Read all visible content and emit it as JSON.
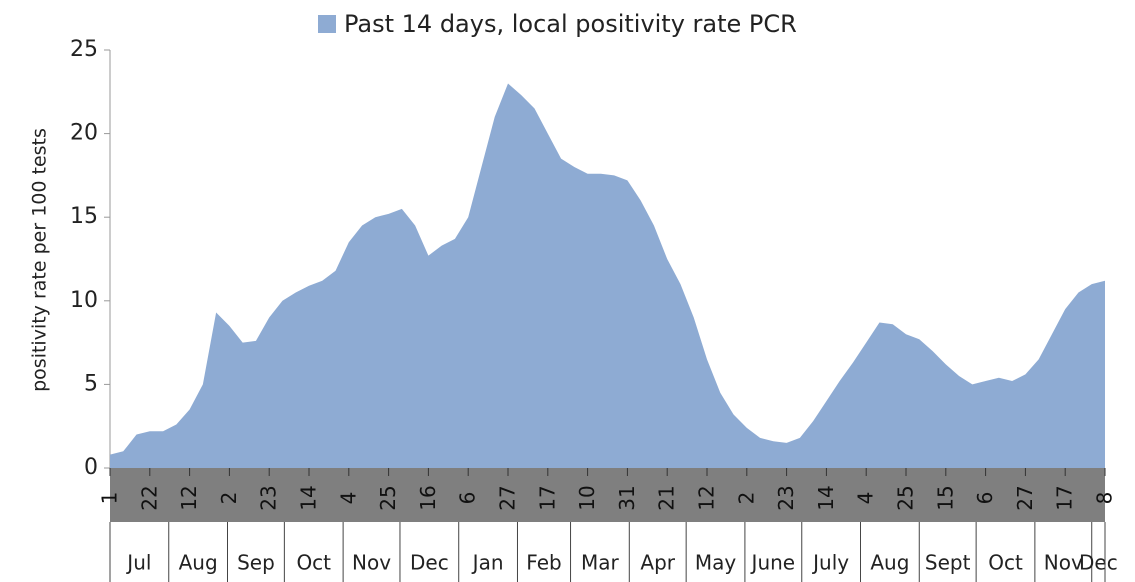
{
  "chart_data": {
    "type": "area",
    "legend_label": "Past 14 days, local positivity rate PCR",
    "y_label": "positivity rate per 100 tests",
    "color": "#8eabd3",
    "series": [
      {
        "name": "Past 14 days, local positivity rate PCR",
        "color": "#8eabd3",
        "x": [
          0,
          7,
          14,
          21,
          28,
          35,
          42,
          49,
          56,
          63,
          70,
          77,
          84,
          91,
          98,
          105,
          112,
          119,
          126,
          133,
          140,
          147,
          154,
          161,
          168,
          175,
          182,
          189,
          196,
          203,
          210,
          217,
          224,
          231,
          238,
          245,
          252,
          259,
          266,
          273,
          280,
          287,
          294,
          301,
          308,
          315,
          322,
          329,
          336,
          343,
          350,
          357,
          364,
          371,
          378,
          385,
          392,
          399,
          406,
          413,
          420,
          427,
          434,
          441,
          448,
          455,
          462,
          469,
          476,
          483,
          490,
          497,
          504,
          511,
          518,
          525
        ],
        "values": [
          0.8,
          1.0,
          2.0,
          2.2,
          2.2,
          2.6,
          3.5,
          5,
          9.3,
          8.5,
          7.5,
          7.6,
          9,
          10,
          10.5,
          10.9,
          11.2,
          11.8,
          13.5,
          14.5,
          15,
          15.2,
          15.5,
          14.5,
          12.7,
          13.3,
          13.7,
          15,
          18,
          21,
          23,
          22.3,
          21.5,
          20,
          18.5,
          18,
          17.6,
          17.6,
          17.5,
          17.2,
          16,
          14.5,
          12.5,
          11,
          9,
          6.5,
          4.5,
          3.2,
          2.4,
          1.8,
          1.6,
          1.5,
          1.8,
          2.8,
          4,
          5.2,
          6.3,
          7.5,
          8.7,
          8.6,
          8,
          7.7,
          7,
          6.2,
          5.5,
          5,
          5.2,
          5.4,
          5.2,
          5.6,
          6.5,
          8,
          9.5,
          10.5,
          11,
          11.2
        ]
      }
    ],
    "xlim": [
      0,
      525
    ],
    "xticks": [
      {
        "value": 0,
        "label": "1"
      },
      {
        "value": 21,
        "label": "22"
      },
      {
        "value": 42,
        "label": "12"
      },
      {
        "value": 63,
        "label": "2"
      },
      {
        "value": 84,
        "label": "23"
      },
      {
        "value": 105,
        "label": "14"
      },
      {
        "value": 126,
        "label": "4"
      },
      {
        "value": 147,
        "label": "25"
      },
      {
        "value": 168,
        "label": "16"
      },
      {
        "value": 189,
        "label": "6"
      },
      {
        "value": 210,
        "label": "27"
      },
      {
        "value": 231,
        "label": "17"
      },
      {
        "value": 252,
        "label": "10"
      },
      {
        "value": 273,
        "label": "31"
      },
      {
        "value": 294,
        "label": "21"
      },
      {
        "value": 315,
        "label": "12"
      },
      {
        "value": 336,
        "label": "2"
      },
      {
        "value": 357,
        "label": "23"
      },
      {
        "value": 378,
        "label": "14"
      },
      {
        "value": 399,
        "label": "4"
      },
      {
        "value": 420,
        "label": "25"
      },
      {
        "value": 441,
        "label": "15"
      },
      {
        "value": 462,
        "label": "6"
      },
      {
        "value": 483,
        "label": "27"
      },
      {
        "value": 504,
        "label": "17"
      },
      {
        "value": 525,
        "label": "8"
      }
    ],
    "months": [
      {
        "label": "Jul",
        "start": 0
      },
      {
        "label": "Aug",
        "start": 31
      },
      {
        "label": "Sep",
        "start": 62
      },
      {
        "label": "Oct",
        "start": 92
      },
      {
        "label": "Nov",
        "start": 123
      },
      {
        "label": "Dec",
        "start": 153
      },
      {
        "label": "Jan",
        "start": 184
      },
      {
        "label": "Feb",
        "start": 215
      },
      {
        "label": "Mar",
        "start": 243
      },
      {
        "label": "Apr",
        "start": 274
      },
      {
        "label": "May",
        "start": 304
      },
      {
        "label": "June",
        "start": 335
      },
      {
        "label": "July",
        "start": 365
      },
      {
        "label": "Aug",
        "start": 396
      },
      {
        "label": "Sept",
        "start": 427
      },
      {
        "label": "Oct",
        "start": 457
      },
      {
        "label": "Nov",
        "start": 488
      },
      {
        "label": "Dec",
        "start": 518
      }
    ],
    "ylim": [
      0,
      25
    ],
    "yticks": [
      0,
      5,
      10,
      15,
      20,
      25
    ],
    "grid": false
  }
}
